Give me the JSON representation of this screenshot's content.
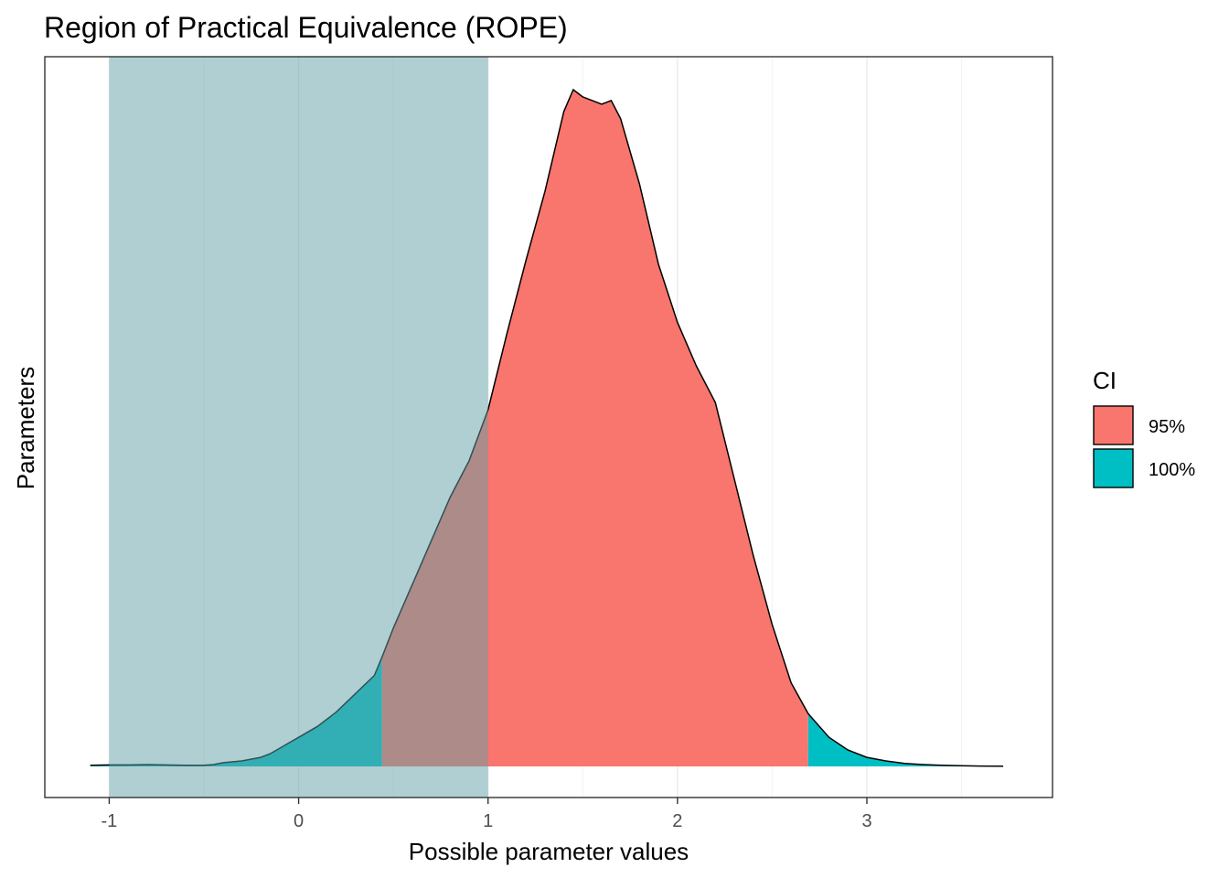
{
  "chart_data": {
    "type": "area",
    "title": "Region of Practical Equivalence (ROPE)",
    "xlabel": "Possible parameter values",
    "ylabel": "Parameters",
    "xlim": [
      -1.34,
      3.98
    ],
    "x_ticks": [
      -1,
      0,
      1,
      2,
      3
    ],
    "x_tick_labels": [
      "-1",
      "0",
      "1",
      "2",
      "3"
    ],
    "grid": true,
    "rope": {
      "range": [
        -1,
        1
      ],
      "color": "#62A0A6"
    },
    "ci_95": [
      0.44,
      2.69
    ],
    "legend": {
      "title": "CI",
      "position": "right",
      "entries": [
        {
          "label": "95%",
          "color": "#F8766D"
        },
        {
          "label": "100%",
          "color": "#00BFC4"
        }
      ]
    },
    "density": {
      "x": [
        -1.1,
        -1.0,
        -0.9,
        -0.8,
        -0.7,
        -0.6,
        -0.5,
        -0.45,
        -0.4,
        -0.3,
        -0.2,
        -0.15,
        -0.1,
        -0.05,
        0.0,
        0.1,
        0.2,
        0.3,
        0.4,
        0.44,
        0.5,
        0.6,
        0.7,
        0.8,
        0.9,
        1.0,
        1.1,
        1.2,
        1.3,
        1.4,
        1.45,
        1.5,
        1.55,
        1.6,
        1.65,
        1.7,
        1.8,
        1.9,
        2.0,
        2.1,
        2.2,
        2.3,
        2.4,
        2.5,
        2.6,
        2.69,
        2.8,
        2.9,
        3.0,
        3.1,
        3.2,
        3.3,
        3.4,
        3.5,
        3.6,
        3.72
      ],
      "y": [
        0.003,
        0.004,
        0.004,
        0.005,
        0.004,
        0.003,
        0.003,
        0.005,
        0.01,
        0.015,
        0.025,
        0.035,
        0.05,
        0.065,
        0.08,
        0.11,
        0.15,
        0.2,
        0.25,
        0.3,
        0.38,
        0.5,
        0.62,
        0.74,
        0.84,
        0.98,
        1.19,
        1.39,
        1.58,
        1.8,
        1.86,
        1.84,
        1.83,
        1.82,
        1.83,
        1.78,
        1.6,
        1.38,
        1.22,
        1.1,
        1.0,
        0.79,
        0.58,
        0.39,
        0.23,
        0.145,
        0.08,
        0.045,
        0.025,
        0.015,
        0.008,
        0.005,
        0.003,
        0.002,
        0.001,
        0.0005
      ]
    },
    "ylim": [
      0,
      1.95
    ]
  }
}
